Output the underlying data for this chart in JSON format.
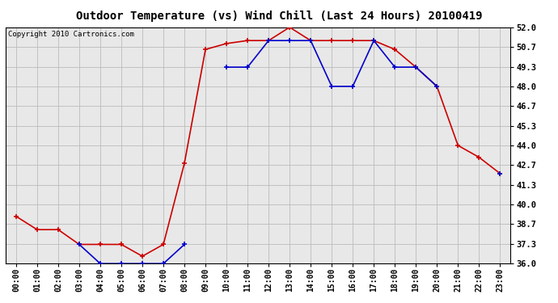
{
  "title": "Outdoor Temperature (vs) Wind Chill (Last 24 Hours) 20100419",
  "copyright": "Copyright 2010 Cartronics.com",
  "x_labels": [
    "00:00",
    "01:00",
    "02:00",
    "03:00",
    "04:00",
    "05:00",
    "06:00",
    "07:00",
    "08:00",
    "09:00",
    "10:00",
    "11:00",
    "12:00",
    "13:00",
    "14:00",
    "15:00",
    "16:00",
    "17:00",
    "18:00",
    "19:00",
    "20:00",
    "21:00",
    "22:00",
    "23:00"
  ],
  "temp_red": [
    39.2,
    38.3,
    38.3,
    37.3,
    37.3,
    37.3,
    36.5,
    37.3,
    42.8,
    50.5,
    50.9,
    51.1,
    51.1,
    52.0,
    51.1,
    51.1,
    51.1,
    51.1,
    50.5,
    49.3,
    48.0,
    44.0,
    43.2,
    42.1
  ],
  "wind_blue": [
    null,
    null,
    null,
    37.3,
    36.0,
    36.0,
    36.0,
    36.0,
    37.3,
    null,
    49.3,
    49.3,
    51.1,
    51.1,
    51.1,
    48.0,
    48.0,
    51.1,
    49.3,
    49.3,
    48.0,
    null,
    null,
    42.1
  ],
  "ylim": [
    36.0,
    52.0
  ],
  "yticks": [
    36.0,
    37.3,
    38.7,
    40.0,
    41.3,
    42.7,
    44.0,
    45.3,
    46.7,
    48.0,
    49.3,
    50.7,
    52.0
  ],
  "bg_color": "#ffffff",
  "plot_bg": "#e8e8e8",
  "grid_color": "#bbbbbb",
  "red_color": "#cc0000",
  "blue_color": "#0000cc",
  "title_fontsize": 10,
  "copyright_fontsize": 6.5,
  "tick_fontsize": 7,
  "ytick_fontsize": 7.5
}
